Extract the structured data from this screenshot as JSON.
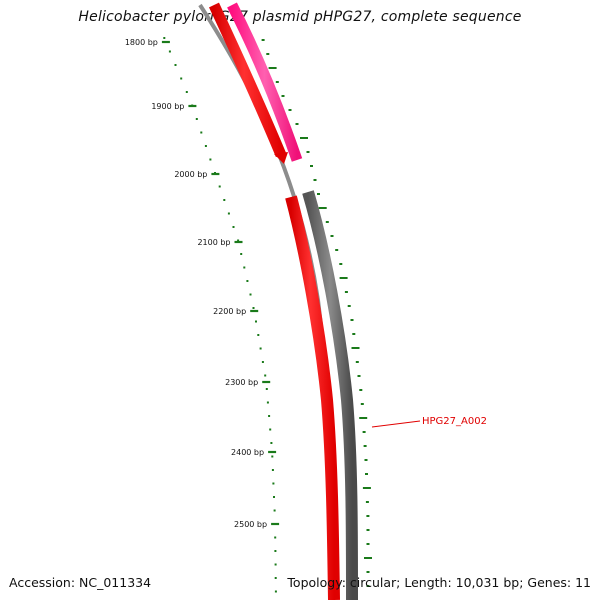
{
  "title": "Helicobacter pylori G27 plasmid pHPG27, complete sequence",
  "accession_text": "Accession: NC_011334",
  "summary_text": "Topology: circular; Length: 10,031 bp; Genes: 11",
  "ruler": {
    "color": "#1a7a1a",
    "labels": [
      "1800 bp",
      "1900 bp",
      "2000 bp",
      "2100 bp",
      "2200 bp",
      "2300 bp",
      "2400 bp",
      "2500 bp"
    ]
  },
  "genes": [
    {
      "label": "HPG27_A002",
      "color": "#e00000"
    }
  ],
  "colors": {
    "backbone": "#8c8c8c",
    "forward_gene": "#ff0000",
    "forward_gene_upper": "#e00000",
    "reverse_gene_pink": "#ff2090",
    "reverse_gene_gray": "#666666"
  }
}
